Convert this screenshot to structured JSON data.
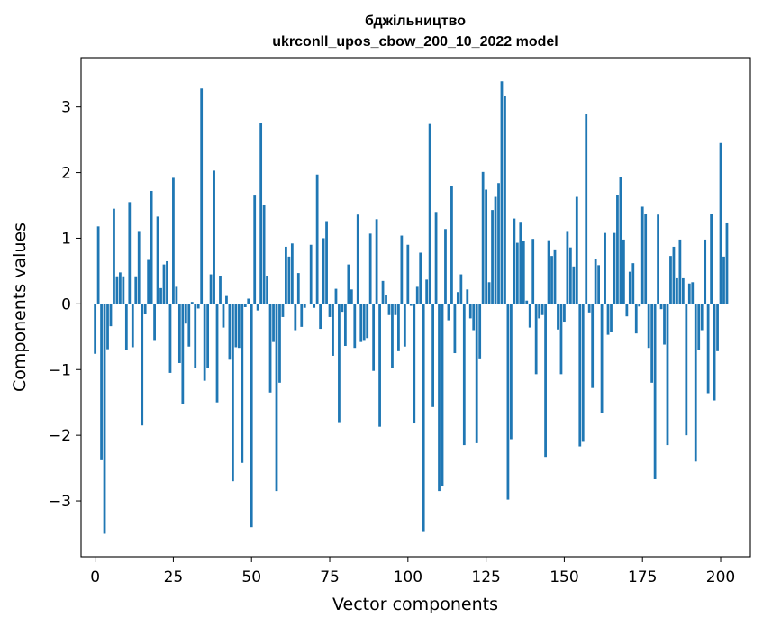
{
  "chart_data": {
    "type": "bar",
    "title": [
      "бджільництво",
      "ukrconll_upos_cbow_200_10_2022 model"
    ],
    "xlabel": "Vector components",
    "ylabel": "Components values",
    "xlim": [
      -4.5,
      209.5
    ],
    "ylim": [
      -3.85,
      3.75
    ],
    "xticks": [
      0,
      25,
      50,
      75,
      100,
      125,
      150,
      175,
      200
    ],
    "yticks": [
      -3,
      -2,
      -1,
      0,
      1,
      2,
      3
    ],
    "bar_color": "#1f77b4",
    "values": [
      -0.76,
      1.18,
      -2.38,
      -3.5,
      -0.69,
      -0.34,
      1.45,
      0.42,
      0.48,
      0.42,
      -0.7,
      1.55,
      -0.66,
      0.42,
      1.11,
      -1.85,
      -0.15,
      0.67,
      1.72,
      -0.55,
      1.33,
      0.24,
      0.6,
      0.65,
      -1.05,
      1.92,
      0.26,
      -0.9,
      -1.52,
      -0.3,
      -0.65,
      0.03,
      -0.97,
      -0.07,
      3.28,
      -1.17,
      -0.97,
      0.45,
      2.03,
      -1.5,
      0.43,
      -0.36,
      0.12,
      -0.85,
      -2.7,
      -0.66,
      -0.67,
      -2.42,
      -0.05,
      0.08,
      -3.4,
      1.65,
      -0.1,
      2.75,
      1.5,
      0.43,
      -1.35,
      -0.58,
      -2.85,
      -1.2,
      -0.2,
      0.87,
      0.72,
      0.92,
      -0.4,
      0.47,
      -0.35,
      -0.06,
      0.0,
      0.9,
      -0.06,
      1.97,
      -0.38,
      1.0,
      1.26,
      -0.2,
      -0.79,
      0.23,
      -1.8,
      -0.12,
      -0.64,
      0.6,
      0.22,
      -0.67,
      1.36,
      -0.58,
      -0.55,
      -0.52,
      1.07,
      -1.02,
      1.29,
      -1.87,
      0.35,
      0.14,
      -0.17,
      -0.97,
      -0.17,
      -0.72,
      1.04,
      -0.65,
      0.9,
      -0.03,
      -1.82,
      0.26,
      0.78,
      -3.46,
      0.37,
      2.74,
      -1.57,
      1.4,
      -2.85,
      -2.78,
      1.14,
      -0.25,
      1.79,
      -0.75,
      0.18,
      0.45,
      -2.15,
      0.22,
      -0.22,
      -0.4,
      -2.12,
      -0.83,
      2.01,
      1.74,
      0.33,
      1.43,
      1.63,
      1.84,
      3.39,
      3.16,
      -2.98,
      -2.06,
      1.3,
      0.93,
      1.25,
      0.96,
      0.05,
      -0.36,
      0.99,
      -1.07,
      -0.22,
      -0.17,
      -2.33,
      0.97,
      0.73,
      0.83,
      -0.39,
      -1.07,
      -0.27,
      1.11,
      0.86,
      0.57,
      1.63,
      -2.17,
      -2.1,
      2.89,
      -0.13,
      -1.28,
      0.68,
      0.59,
      -1.66,
      1.08,
      -0.47,
      -0.43,
      1.08,
      1.66,
      1.93,
      0.98,
      -0.19,
      0.49,
      0.62,
      -0.45,
      -0.04,
      1.48,
      1.37,
      -0.67,
      -1.2,
      -2.67,
      1.36,
      -0.08,
      -0.62,
      -2.15,
      0.73,
      0.87,
      0.39,
      0.98,
      0.39,
      -2.0,
      0.31,
      0.33,
      -2.4,
      -0.7,
      -0.4,
      0.98,
      -1.36,
      1.37,
      -1.47,
      -0.72,
      2.45,
      0.72,
      1.24
    ]
  }
}
